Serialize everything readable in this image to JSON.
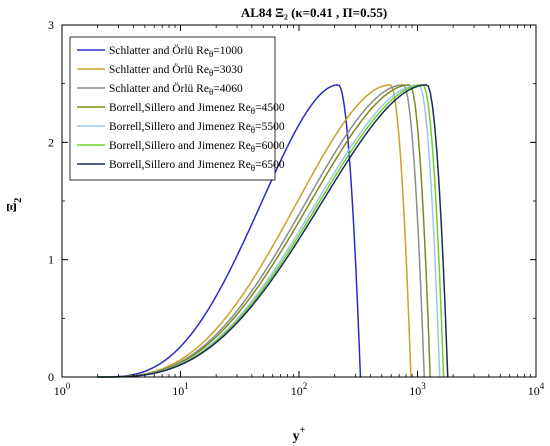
{
  "chart_data": {
    "type": "line",
    "title": "AL84 Ξ₂ (κ=0.41 , Π=0.55)",
    "xlabel": "y+",
    "ylabel": "Ξ2",
    "xscale": "log",
    "xlim": [
      1,
      10000
    ],
    "ylim": [
      0,
      3
    ],
    "x_ticks": [
      1,
      10,
      100,
      1000,
      10000
    ],
    "x_tick_labels": [
      {
        "base": "10",
        "exp": "0"
      },
      {
        "base": "10",
        "exp": "1"
      },
      {
        "base": "10",
        "exp": "2"
      },
      {
        "base": "10",
        "exp": "3"
      },
      {
        "base": "10",
        "exp": "4"
      }
    ],
    "y_ticks": [
      0,
      1,
      2,
      3
    ],
    "y_tick_labels": [
      "0",
      "1",
      "2",
      "3"
    ],
    "grid": false,
    "legend_position": "top-left",
    "series": [
      {
        "name_base": "Schlatter and Örlü Re",
        "name_sub": "θ",
        "name_tail": "=1000",
        "color": "#2a2ac8",
        "peak_x": 215,
        "end_x": 330,
        "peak_y": 2.49
      },
      {
        "name_base": "Schlatter and Örlü Re",
        "name_sub": "θ",
        "name_tail": "=3030",
        "color": "#c9a227",
        "peak_x": 590,
        "end_x": 880,
        "peak_y": 2.49
      },
      {
        "name_base": "Schlatter and Örlü Re",
        "name_sub": "θ",
        "name_tail": "=4060",
        "color": "#8c8c8c",
        "peak_x": 760,
        "end_x": 1140,
        "peak_y": 2.49
      },
      {
        "name_base": "Borrell,Sillero and Jimenez Re",
        "name_sub": "θ",
        "name_tail": "=4500",
        "color": "#7a8c1e",
        "peak_x": 860,
        "end_x": 1280,
        "peak_y": 2.49
      },
      {
        "name_base": "Borrell,Sillero and Jimenez Re",
        "name_sub": "θ",
        "name_tail": "=5500",
        "color": "#9ec5e8",
        "peak_x": 1030,
        "end_x": 1540,
        "peak_y": 2.49
      },
      {
        "name_base": "Borrell,Sillero and Jimenez Re",
        "name_sub": "θ",
        "name_tail": "=6000",
        "color": "#6fcf2a",
        "peak_x": 1110,
        "end_x": 1660,
        "peak_y": 2.49
      },
      {
        "name_base": "Borrell,Sillero and Jimenez Re",
        "name_sub": "θ",
        "name_tail": "=6500",
        "color": "#1a2a5a",
        "peak_x": 1200,
        "end_x": 1800,
        "peak_y": 2.49
      }
    ]
  }
}
